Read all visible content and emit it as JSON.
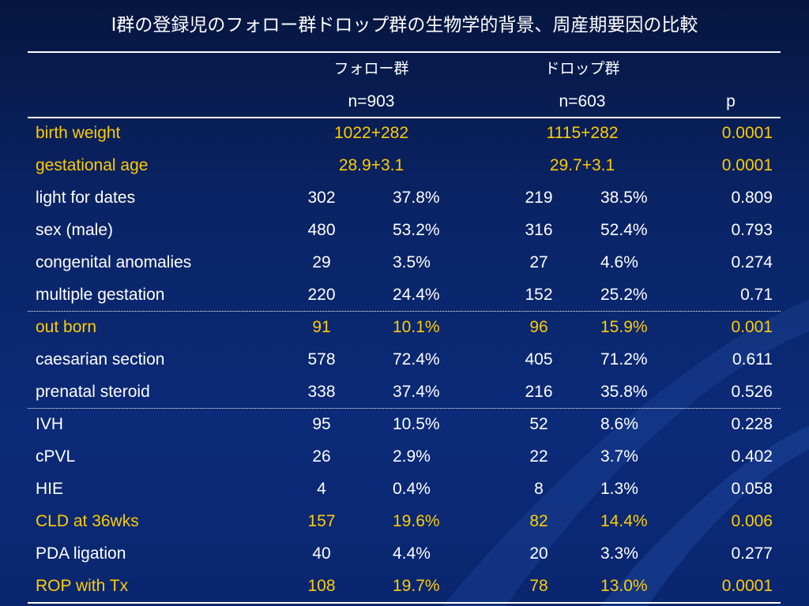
{
  "title": "Ⅰ群の登録児のフォロー群ドロップ群の生物学的背景、周産期要因の比較",
  "header": {
    "group1_name": "フォロー群",
    "group2_name": "ドロップ群",
    "group1_n": "n=903",
    "group2_n": "n=603",
    "p_label": "p"
  },
  "mean_rows": [
    {
      "label": "birth weight",
      "g1": "1022+282",
      "g2": "1115+282",
      "p": "0.0001",
      "highlight": true
    },
    {
      "label": "gestational age",
      "g1": "28.9+3.1",
      "g2": "29.7+3.1",
      "p": "0.0001",
      "highlight": true
    }
  ],
  "count_rows": [
    {
      "label": "light for dates",
      "n1": "302",
      "p1": "37.8%",
      "n2": "219",
      "p2": "38.5%",
      "p": "0.809",
      "highlight": false
    },
    {
      "label": "sex (male)",
      "n1": "480",
      "p1": "53.2%",
      "n2": "316",
      "p2": "52.4%",
      "p": "0.793",
      "highlight": false
    },
    {
      "label": "congenital anomalies",
      "n1": "29",
      "p1": "3.5%",
      "n2": "27",
      "p2": "4.6%",
      "p": "0.274",
      "highlight": false
    },
    {
      "label": "multiple gestation",
      "n1": "220",
      "p1": "24.4%",
      "n2": "152",
      "p2": "25.2%",
      "p": "0.71",
      "highlight": false
    },
    {
      "label": "out born",
      "n1": "91",
      "p1": "10.1%",
      "n2": "96",
      "p2": "15.9%",
      "p": "0.001",
      "highlight": true
    },
    {
      "label": "caesarian section",
      "n1": "578",
      "p1": "72.4%",
      "n2": "405",
      "p2": "71.2%",
      "p": "0.611",
      "highlight": false
    },
    {
      "label": "prenatal steroid",
      "n1": "338",
      "p1": "37.4%",
      "n2": "216",
      "p2": "35.8%",
      "p": "0.526",
      "highlight": false
    },
    {
      "label": "IVH",
      "n1": "95",
      "p1": "10.5%",
      "n2": "52",
      "p2": "8.6%",
      "p": "0.228",
      "highlight": false
    },
    {
      "label": "cPVL",
      "n1": "26",
      "p1": "2.9%",
      "n2": "22",
      "p2": "3.7%",
      "p": "0.402",
      "highlight": false
    },
    {
      "label": "HIE",
      "n1": "4",
      "p1": "0.4%",
      "n2": "8",
      "p2": "1.3%",
      "p": "0.058",
      "highlight": false
    },
    {
      "label": "CLD at 36wks",
      "n1": "157",
      "p1": "19.6%",
      "n2": "82",
      "p2": "14.4%",
      "p": "0.006",
      "highlight": true
    },
    {
      "label": "PDA ligation",
      "n1": "40",
      "p1": "4.4%",
      "n2": "20",
      "p2": "3.3%",
      "p": "0.277",
      "highlight": false
    },
    {
      "label": "ROP with Tx",
      "n1": "108",
      "p1": "19.7%",
      "n2": "78",
      "p2": "13.0%",
      "p": "0.0001",
      "highlight": true
    }
  ],
  "colors": {
    "background": "#0b2a78",
    "text": "#ffffff",
    "highlight": "#ffcc00"
  }
}
